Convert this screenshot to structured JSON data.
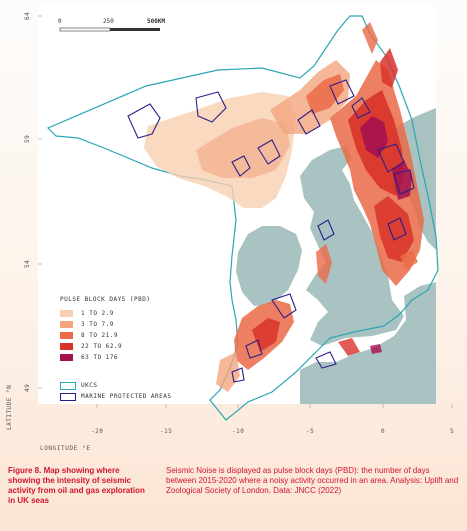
{
  "scale_bar": {
    "ticks": [
      "0",
      "250",
      "500KM"
    ]
  },
  "latitude_ticks": [
    "64",
    "59",
    "54",
    "49"
  ],
  "longitude_ticks": [
    "-20",
    "-15",
    "-10",
    "-5",
    "0",
    "5"
  ],
  "axis": {
    "latitude_label": "LATITUDE °N",
    "longitude_label": "LONGITUDE °E"
  },
  "legend": {
    "title": "PULSE BLOCK DAYS (PBD)",
    "classes": [
      {
        "label": "1 TO 2.9",
        "color": "#f8cfb0"
      },
      {
        "label": "3 TO 7.9",
        "color": "#f2a57e"
      },
      {
        "label": "8 TO 21.9",
        "color": "#ea6a47"
      },
      {
        "label": "22 TO 62.9",
        "color": "#d8322a"
      },
      {
        "label": "63 TO 176",
        "color": "#a5124f"
      }
    ]
  },
  "boundaries": [
    {
      "label": "UKCS",
      "color": "#2aa7b3"
    },
    {
      "label": "MARINE PROTECTED AREAS",
      "color": "#2b1e8a"
    }
  ],
  "caption": {
    "title": "Figure 8. Map showing where showing the intensity of seismic activity from oil and gas exploration in UK seas",
    "text": "Seismic Noise is displayed as pulse block days (PBD): the number of days between 2015-2020 where a noisy activity occurred in an area. Analysis: Uplift and Zoological Society of London. Data: JNCC (2022)"
  },
  "colors": {
    "land": "#a9c2c2",
    "sea_panel": "#ffffff",
    "ukcs": "#2aa7b3",
    "mpa": "#2b1e8a",
    "caption": "#d2152e"
  }
}
